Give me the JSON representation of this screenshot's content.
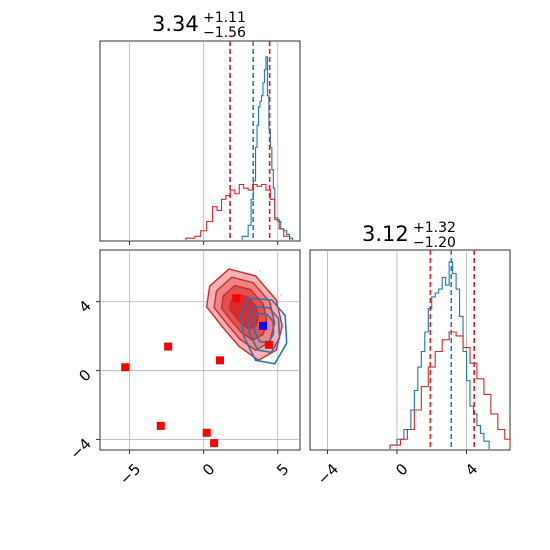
{
  "chart_data": [
    {
      "type": "histogram",
      "panel": "top-left marginal",
      "title": {
        "value": "3.34",
        "plus": "+1.11",
        "minus": "−1.56"
      },
      "xlim": [
        -7,
        6.5
      ],
      "grid": true,
      "colors": {
        "series_a": "#1f77b4",
        "series_b": "#d62728"
      },
      "series": [
        {
          "color": "#1f77b4",
          "quantiles": [
            1.78,
            3.34,
            4.45
          ],
          "bins_x": [
            2.6,
            3.0,
            3.2,
            3.35,
            3.5,
            3.6,
            3.7,
            3.8,
            3.9,
            4.0,
            4.1,
            4.2,
            4.3,
            4.4,
            4.5,
            4.6,
            4.7,
            4.8,
            5.0,
            5.2,
            5.4,
            5.6,
            5.8,
            6.0
          ],
          "counts": [
            0.02,
            0.08,
            0.22,
            0.32,
            0.5,
            0.62,
            0.72,
            0.75,
            0.78,
            0.85,
            0.92,
            0.99,
            0.78,
            0.6,
            0.5,
            0.38,
            0.28,
            0.12,
            0.1,
            0.06,
            0.05,
            0.03,
            0.01,
            0.0
          ]
        },
        {
          "color": "#d62728",
          "quantiles": [
            1.78,
            4.45
          ],
          "bins_x": [
            -1.2,
            -0.6,
            -0.2,
            0.2,
            0.6,
            0.9,
            1.2,
            1.5,
            1.8,
            2.1,
            2.4,
            2.7,
            3.0,
            3.3,
            3.6,
            3.9,
            4.2,
            4.5,
            4.8,
            5.1,
            5.4,
            5.8
          ],
          "counts": [
            0.01,
            0.02,
            0.05,
            0.1,
            0.18,
            0.16,
            0.22,
            0.24,
            0.27,
            0.25,
            0.3,
            0.28,
            0.27,
            0.3,
            0.29,
            0.3,
            0.27,
            0.22,
            0.11,
            0.06,
            0.02,
            0.0
          ]
        }
      ]
    },
    {
      "type": "scatter",
      "panel": "bottom-left joint",
      "xlim": [
        -7,
        6.5
      ],
      "ylim": [
        -4.6,
        7
      ],
      "xticks": [
        -5,
        0,
        5
      ],
      "yticks": [
        -4,
        0,
        4
      ],
      "xtick_labels": [
        "−5",
        "0",
        "5"
      ],
      "ytick_labels": [
        "−4",
        "0",
        "4"
      ],
      "grid": true,
      "red_squares": [
        [
          -5.3,
          0.2
        ],
        [
          -2.4,
          1.4
        ],
        [
          -2.9,
          -3.2
        ],
        [
          0.2,
          -3.6
        ],
        [
          0.7,
          -4.2
        ],
        [
          1.1,
          0.6
        ],
        [
          2.2,
          4.2
        ],
        [
          4.4,
          1.5
        ]
      ],
      "blue_squares": [
        [
          4.0,
          2.6
        ]
      ],
      "contours": [
        {
          "color": "#d62728",
          "label": "red density contours",
          "center": [
            2.7,
            3.5
          ],
          "levels": [
            1.0,
            0.8,
            0.6,
            0.38
          ]
        },
        {
          "color": "#1f77b4",
          "label": "blue density contours",
          "center": [
            4.0,
            2.6
          ],
          "levels": [
            1.0,
            0.7,
            0.45
          ]
        }
      ]
    },
    {
      "type": "histogram",
      "panel": "bottom-right marginal",
      "title": {
        "value": "3.12",
        "plus": "+1.32",
        "minus": "−1.20"
      },
      "xlim": [
        -5,
        6.5
      ],
      "xticks": [
        -4,
        0,
        4
      ],
      "xtick_labels": [
        "−4",
        "0",
        "4"
      ],
      "grid": true,
      "series": [
        {
          "color": "#1f77b4",
          "quantiles": [
            1.92,
            3.12,
            4.44
          ],
          "bins_x": [
            -0.4,
            0.0,
            0.4,
            0.8,
            1.0,
            1.2,
            1.4,
            1.6,
            1.8,
            2.0,
            2.2,
            2.4,
            2.6,
            2.8,
            3.0,
            3.2,
            3.4,
            3.6,
            3.8,
            4.0,
            4.2,
            4.4,
            4.6,
            4.8,
            5.0,
            5.3
          ],
          "counts": [
            0.02,
            0.05,
            0.1,
            0.2,
            0.3,
            0.42,
            0.5,
            0.6,
            0.72,
            0.78,
            0.8,
            0.82,
            0.88,
            0.84,
            0.96,
            0.9,
            0.82,
            0.68,
            0.5,
            0.35,
            0.22,
            0.18,
            0.12,
            0.08,
            0.04,
            0.0
          ]
        },
        {
          "color": "#d62728",
          "quantiles": [
            1.92,
            4.44
          ],
          "bins_x": [
            -0.4,
            0.2,
            0.6,
            1.0,
            1.4,
            1.8,
            2.2,
            2.6,
            3.0,
            3.4,
            3.8,
            4.2,
            4.6,
            5.0,
            5.4,
            5.8,
            6.2,
            6.5
          ],
          "counts": [
            0.02,
            0.05,
            0.1,
            0.2,
            0.32,
            0.42,
            0.5,
            0.56,
            0.6,
            0.58,
            0.52,
            0.44,
            0.36,
            0.28,
            0.18,
            0.1,
            0.05,
            0.0
          ]
        }
      ]
    }
  ]
}
